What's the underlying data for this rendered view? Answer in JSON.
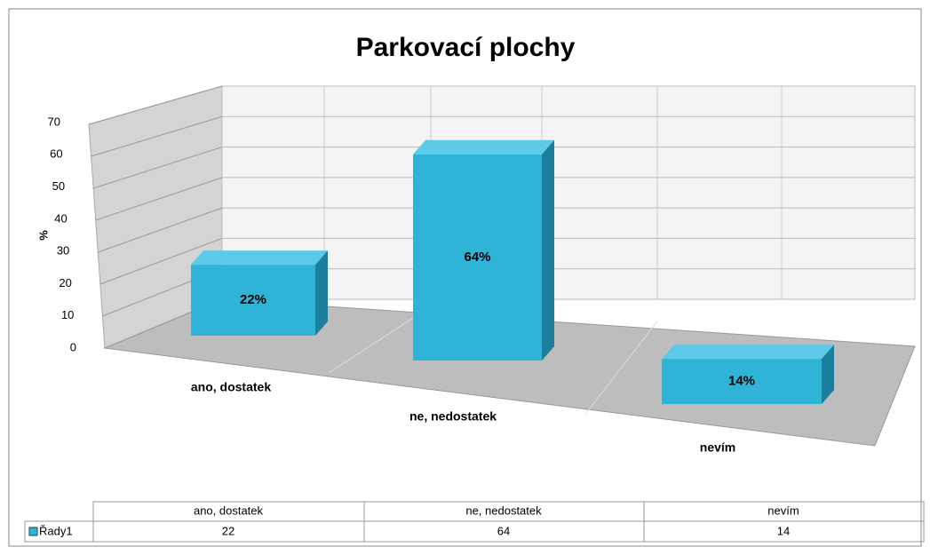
{
  "chart_data": {
    "type": "bar3d",
    "title": "Parkovací plochy",
    "y_label": "%",
    "categories": [
      "ano, dostatek",
      "ne, nedostatek",
      "nevím"
    ],
    "series": [
      {
        "name": "Řady1",
        "color": "#2fb3d6",
        "values": [
          22,
          64,
          14
        ],
        "value_labels": [
          "22%",
          "64%",
          "14%"
        ]
      }
    ],
    "ylim": [
      0,
      70
    ],
    "yticks": [
      0,
      10,
      20,
      30,
      40,
      50,
      60,
      70
    ],
    "grid": true,
    "data_table": true
  }
}
